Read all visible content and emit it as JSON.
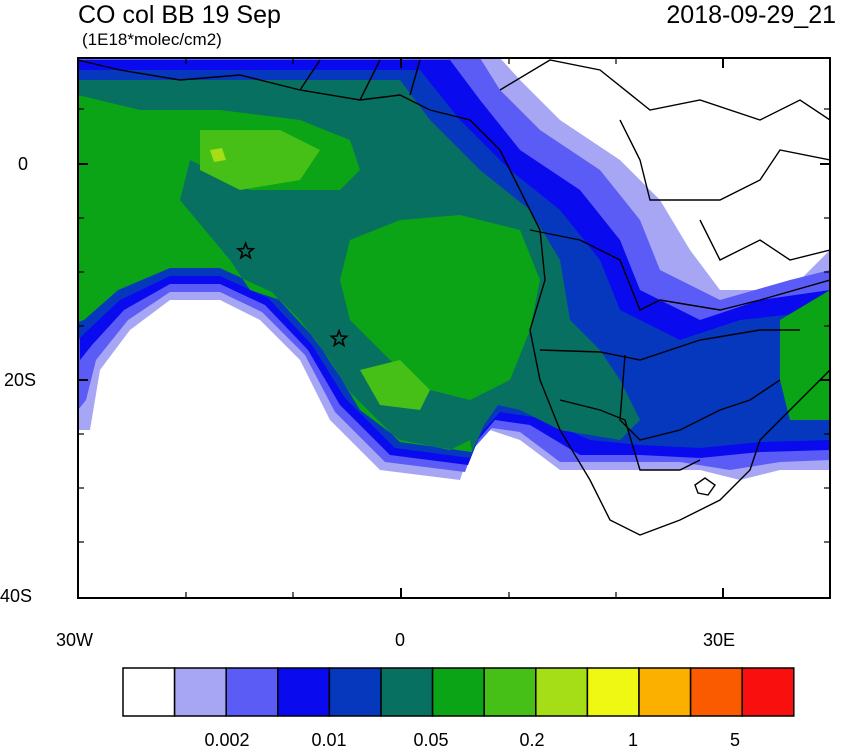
{
  "header": {
    "title": "CO col BB 19 Sep",
    "units": "(1E18*molec/cm2)",
    "datetime": "2018-09-29_21"
  },
  "axes": {
    "lat_labels": [
      "0",
      "20S",
      "40S"
    ],
    "lon_labels": [
      "30W",
      "0",
      "30E"
    ]
  },
  "colorbar": {
    "colors": [
      "#ffffff",
      "#a6a6f5",
      "#5b5bf5",
      "#0a0aee",
      "#0638be",
      "#087060",
      "#0ba416",
      "#46bf16",
      "#a5dd16",
      "#eef812",
      "#fbb000",
      "#fa5a00",
      "#fa0f0f"
    ],
    "labels": [
      "0.002",
      "0.01",
      "0.05",
      "0.2",
      "1",
      "5"
    ]
  },
  "markers": {
    "icon": "star-outline",
    "locations": [
      {
        "lon": -14.4,
        "lat": -7.9
      },
      {
        "lon": -5.7,
        "lat": -16.0
      }
    ]
  }
}
